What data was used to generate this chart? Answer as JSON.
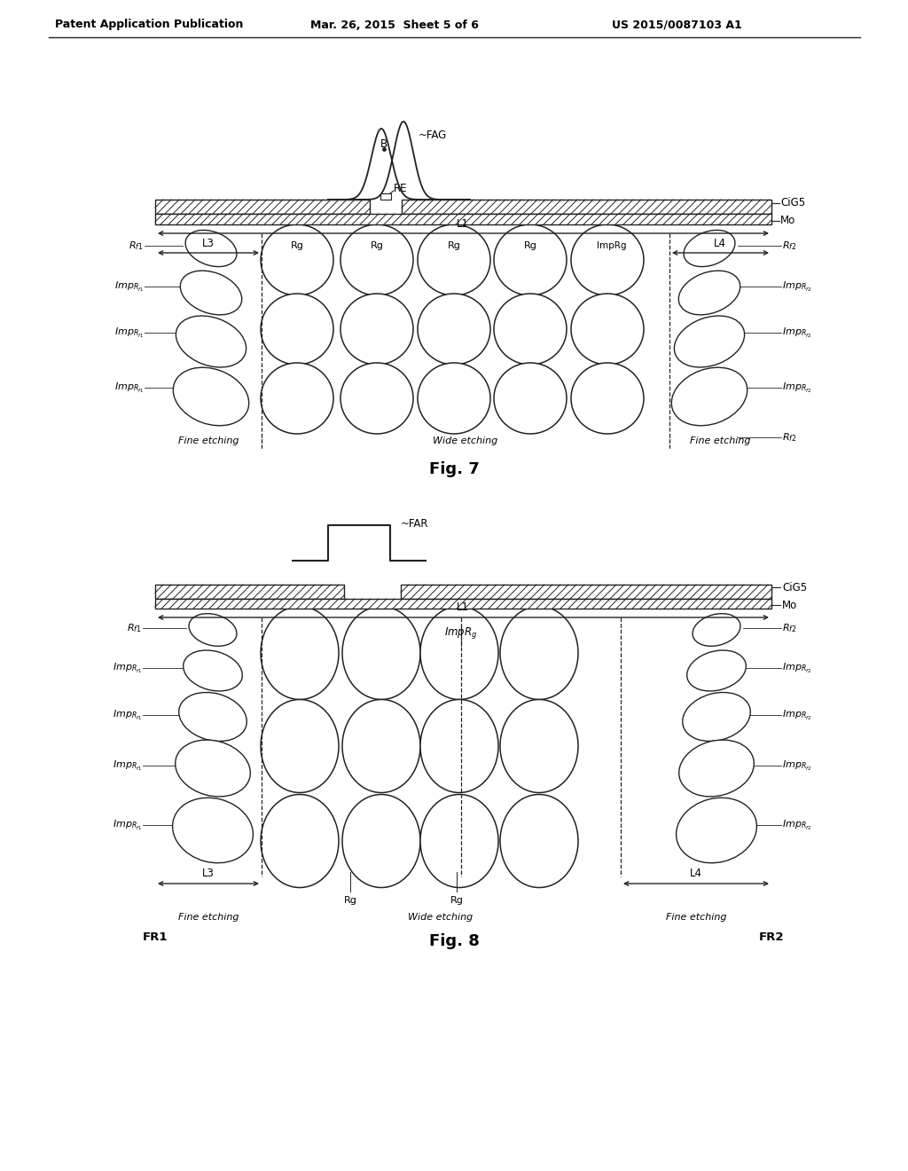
{
  "title_left": "Patent Application Publication",
  "title_mid": "Mar. 26, 2015  Sheet 5 of 6",
  "title_right": "US 2015/0087103 A1",
  "fig7_label": "Fig. 7",
  "fig8_label": "Fig. 8",
  "bg_color": "#ffffff",
  "line_color": "#222222"
}
